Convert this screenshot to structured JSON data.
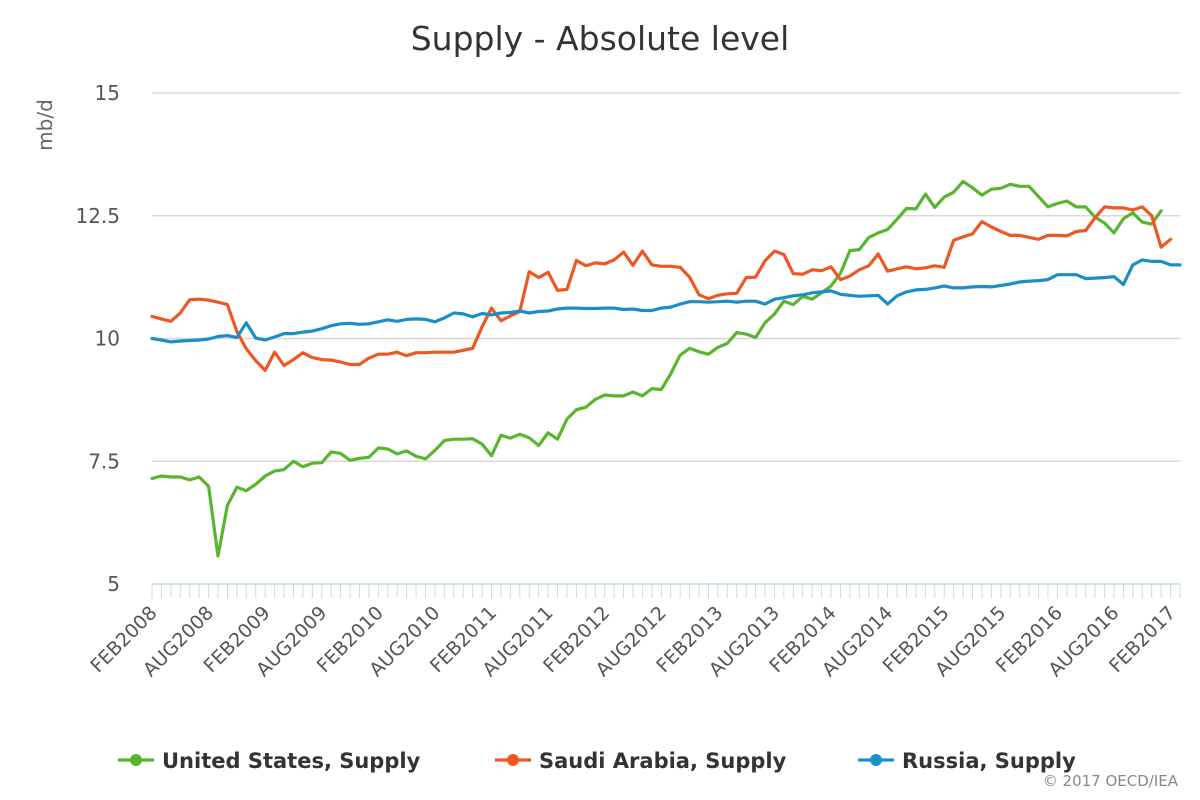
{
  "chart_data": {
    "type": "line",
    "title": "Supply - Absolute level",
    "ylabel": "mb/d",
    "ylim": [
      5,
      15
    ],
    "y_ticks": [
      "5",
      "7.5",
      "10",
      "12.5",
      "15"
    ],
    "y_tick_values": [
      5,
      7.5,
      10,
      12.5,
      15
    ],
    "x_start": "2008-02",
    "x_end": "2017-03",
    "x_tick_labels": [
      "FEB2008",
      "AUG2008",
      "FEB2009",
      "AUG2009",
      "FEB2010",
      "AUG2010",
      "FEB2011",
      "AUG2011",
      "FEB2012",
      "AUG2012",
      "FEB2013",
      "AUG2013",
      "FEB2014",
      "AUG2014",
      "FEB2015",
      "AUG2015",
      "FEB2016",
      "AUG2016",
      "FEB2017"
    ],
    "x_tick_months": [
      "2008-02",
      "2008-08",
      "2009-02",
      "2009-08",
      "2010-02",
      "2010-08",
      "2011-02",
      "2011-08",
      "2012-02",
      "2012-08",
      "2013-02",
      "2013-08",
      "2014-02",
      "2014-08",
      "2015-02",
      "2015-08",
      "2016-02",
      "2016-08",
      "2017-02"
    ],
    "grid": "horizontal",
    "legend": "bottom",
    "series": [
      {
        "name": "United States, Supply",
        "color": "#5ab52e",
        "values": [
          7.15,
          7.2,
          7.18,
          7.18,
          7.12,
          7.18,
          6.99,
          5.57,
          6.6,
          6.97,
          6.9,
          7.03,
          7.2,
          7.3,
          7.33,
          7.5,
          7.39,
          7.46,
          7.47,
          7.69,
          7.66,
          7.52,
          7.56,
          7.58,
          7.77,
          7.75,
          7.65,
          7.71,
          7.6,
          7.55,
          7.72,
          7.92,
          7.95,
          7.95,
          7.96,
          7.85,
          7.61,
          8.03,
          7.97,
          8.05,
          7.98,
          7.82,
          8.08,
          7.95,
          8.36,
          8.55,
          8.6,
          8.76,
          8.85,
          8.83,
          8.83,
          8.91,
          8.83,
          8.98,
          8.96,
          9.28,
          9.66,
          9.8,
          9.73,
          9.68,
          9.82,
          9.9,
          10.12,
          10.09,
          10.02,
          10.32,
          10.5,
          10.76,
          10.69,
          10.86,
          10.8,
          10.93,
          11.07,
          11.33,
          11.79,
          11.81,
          12.06,
          12.15,
          12.22,
          12.43,
          12.65,
          12.64,
          12.94,
          12.67,
          12.88,
          12.98,
          13.2,
          13.07,
          12.92,
          13.04,
          13.06,
          13.14,
          13.1,
          13.1,
          12.89,
          12.68,
          12.75,
          12.8,
          12.68,
          12.68,
          12.47,
          12.35,
          12.15,
          12.44,
          12.56,
          12.37,
          12.33,
          12.6
        ]
      },
      {
        "name": "Saudi Arabia, Supply",
        "color": "#ee5722",
        "values": [
          10.45,
          10.4,
          10.35,
          10.52,
          10.79,
          10.8,
          10.78,
          10.74,
          10.69,
          10.14,
          9.79,
          9.55,
          9.35,
          9.72,
          9.45,
          9.57,
          9.71,
          9.61,
          9.57,
          9.56,
          9.52,
          9.47,
          9.47,
          9.6,
          9.68,
          9.68,
          9.72,
          9.65,
          9.71,
          9.71,
          9.72,
          9.72,
          9.72,
          9.76,
          9.8,
          10.24,
          10.62,
          10.36,
          10.46,
          10.55,
          11.36,
          11.24,
          11.35,
          10.98,
          11.0,
          11.59,
          11.48,
          11.54,
          11.52,
          11.6,
          11.76,
          11.49,
          11.78,
          11.5,
          11.47,
          11.47,
          11.45,
          11.25,
          10.89,
          10.81,
          10.88,
          10.91,
          10.92,
          11.24,
          11.25,
          11.58,
          11.78,
          11.71,
          11.32,
          11.31,
          11.4,
          11.38,
          11.46,
          11.2,
          11.27,
          11.4,
          11.48,
          11.72,
          11.37,
          11.42,
          11.46,
          11.42,
          11.44,
          11.48,
          11.45,
          12.0,
          12.07,
          12.13,
          12.38,
          12.27,
          12.18,
          12.1,
          12.1,
          12.06,
          12.02,
          12.1,
          12.1,
          12.09,
          12.18,
          12.2,
          12.46,
          12.68,
          12.66,
          12.66,
          12.62,
          12.68,
          12.5,
          11.86,
          12.02
        ]
      },
      {
        "name": "Russia, Supply",
        "color": "#1b8ec9",
        "values": [
          10.0,
          9.97,
          9.93,
          9.95,
          9.96,
          9.97,
          9.99,
          10.04,
          10.06,
          10.02,
          10.32,
          10.01,
          9.97,
          10.03,
          10.1,
          10.1,
          10.13,
          10.15,
          10.2,
          10.26,
          10.3,
          10.31,
          10.29,
          10.3,
          10.34,
          10.38,
          10.35,
          10.39,
          10.4,
          10.39,
          10.34,
          10.42,
          10.52,
          10.5,
          10.44,
          10.51,
          10.48,
          10.52,
          10.53,
          10.56,
          10.52,
          10.55,
          10.56,
          10.6,
          10.62,
          10.62,
          10.61,
          10.61,
          10.62,
          10.62,
          10.59,
          10.6,
          10.57,
          10.57,
          10.62,
          10.64,
          10.7,
          10.75,
          10.75,
          10.74,
          10.75,
          10.76,
          10.74,
          10.76,
          10.76,
          10.7,
          10.8,
          10.83,
          10.87,
          10.89,
          10.93,
          10.95,
          10.97,
          10.9,
          10.88,
          10.86,
          10.87,
          10.88,
          10.7,
          10.87,
          10.95,
          10.99,
          11.0,
          11.03,
          11.07,
          11.03,
          11.03,
          11.05,
          11.06,
          11.05,
          11.08,
          11.11,
          11.15,
          11.17,
          11.18,
          11.2,
          11.3,
          11.3,
          11.3,
          11.22,
          11.23,
          11.24,
          11.26,
          11.1,
          11.5,
          11.6,
          11.57,
          11.57,
          11.5,
          11.5
        ]
      }
    ],
    "credit": "© 2017 OECD/IEA"
  }
}
